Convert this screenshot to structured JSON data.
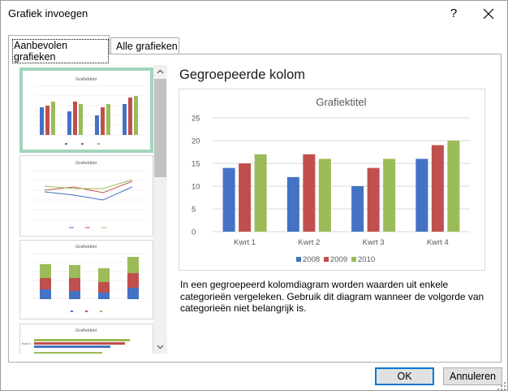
{
  "dialog": {
    "title": "Grafiek invoegen",
    "help_label": "?",
    "close_icon": "close-icon"
  },
  "tabs": [
    {
      "label": "Aanbevolen grafieken",
      "active": true
    },
    {
      "label": "Alle grafieken",
      "active": false
    }
  ],
  "thumbnails": [
    {
      "title": "Grafiektitel",
      "type": "clustered-column",
      "selected": true
    },
    {
      "title": "Grafiektitel",
      "type": "line",
      "selected": false
    },
    {
      "title": "Grafiektitel",
      "type": "stacked-column",
      "selected": false
    },
    {
      "title": "Grafiektitel",
      "type": "clustered-bar",
      "selected": false,
      "first_category": "Kwrt 4"
    }
  ],
  "preview": {
    "heading": "Gegroepeerde kolom",
    "description": "In een gegroepeerd kolomdiagram worden waarden uit enkele categorieën vergeleken. Gebruik dit diagram wanneer de volgorde van categorieën niet belangrijk is."
  },
  "chart_data": {
    "type": "bar",
    "title": "Grafiektitel",
    "categories": [
      "Kwrt 1",
      "Kwrt 2",
      "Kwrt 3",
      "Kwrt 4"
    ],
    "series": [
      {
        "name": "2008",
        "values": [
          14,
          12,
          10,
          16
        ],
        "color": "#4472c4"
      },
      {
        "name": "2009",
        "values": [
          15,
          17,
          14,
          19
        ],
        "color": "#c0504d"
      },
      {
        "name": "2010",
        "values": [
          17,
          16,
          16,
          20
        ],
        "color": "#9bbb59"
      }
    ],
    "ylim": [
      0,
      25
    ],
    "yticks": [
      0,
      5,
      10,
      15,
      20,
      25
    ],
    "grid": true,
    "legend": "bottom"
  },
  "buttons": {
    "ok_label": "OK",
    "cancel_label": "Annuleren"
  }
}
